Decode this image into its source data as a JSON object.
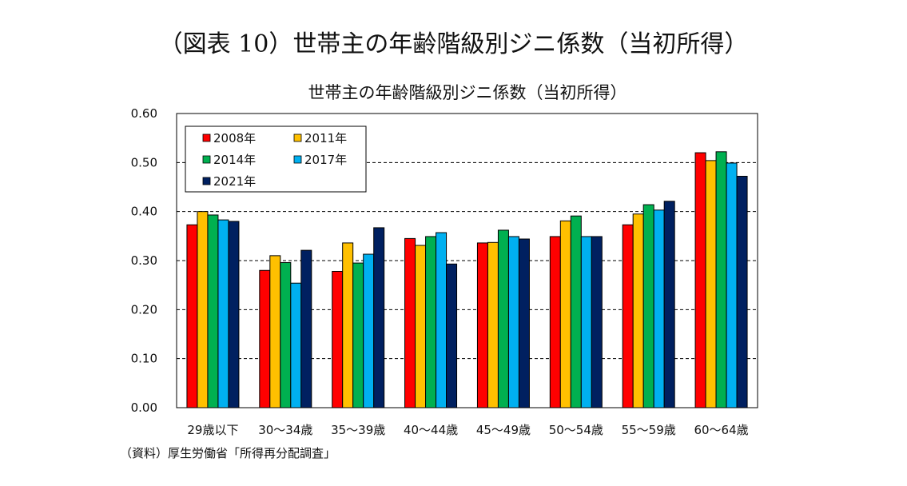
{
  "figure_title": "（図表 10）世帯主の年齢階級別ジニ係数（当初所得）",
  "source": "（資料）厚生労働省「所得再分配調査」",
  "chart_data": {
    "type": "bar",
    "title": "世帯主の年齢階級別ジニ係数（当初所得）",
    "xlabel": "",
    "ylabel": "",
    "ylim": [
      0,
      0.6
    ],
    "yticks": [
      "0.00",
      "0.10",
      "0.20",
      "0.30",
      "0.40",
      "0.50",
      "0.60"
    ],
    "grid": "horizontal dashed",
    "legend": "top-left",
    "categories": [
      "29歳以下",
      "30～34歳",
      "35～39歳",
      "40～44歳",
      "45～49歳",
      "50～54歳",
      "55～59歳",
      "60～64歳"
    ],
    "series": [
      {
        "name": "2008年",
        "color": "#ff0000",
        "values": [
          0.373,
          0.28,
          0.278,
          0.345,
          0.336,
          0.349,
          0.373,
          0.52
        ]
      },
      {
        "name": "2011年",
        "color": "#ffc000",
        "values": [
          0.4,
          0.31,
          0.336,
          0.331,
          0.337,
          0.381,
          0.395,
          0.504
        ]
      },
      {
        "name": "2014年",
        "color": "#00b050",
        "values": [
          0.393,
          0.296,
          0.295,
          0.349,
          0.362,
          0.391,
          0.414,
          0.522
        ]
      },
      {
        "name": "2017年",
        "color": "#00b0f0",
        "values": [
          0.383,
          0.254,
          0.313,
          0.357,
          0.349,
          0.349,
          0.403,
          0.499
        ]
      },
      {
        "name": "2021年",
        "color": "#002060",
        "values": [
          0.38,
          0.321,
          0.367,
          0.293,
          0.344,
          0.349,
          0.421,
          0.472
        ]
      }
    ]
  }
}
